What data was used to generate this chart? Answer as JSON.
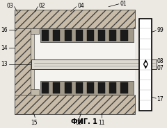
{
  "fig_label": "ФИГ. 1",
  "bg_color": "#ece8e2",
  "yoke_fc": "#c8bca8",
  "magnet_fc": "#1a1a1a",
  "magnet_bg": "#a09888",
  "white": "#ffffff",
  "black": "#000000",
  "plate_fc": "#ddd8d0",
  "roller_fc": "#f0eee8",
  "inner_fc": "#e8e4dc",
  "gap_fc": "#f5f3ef"
}
